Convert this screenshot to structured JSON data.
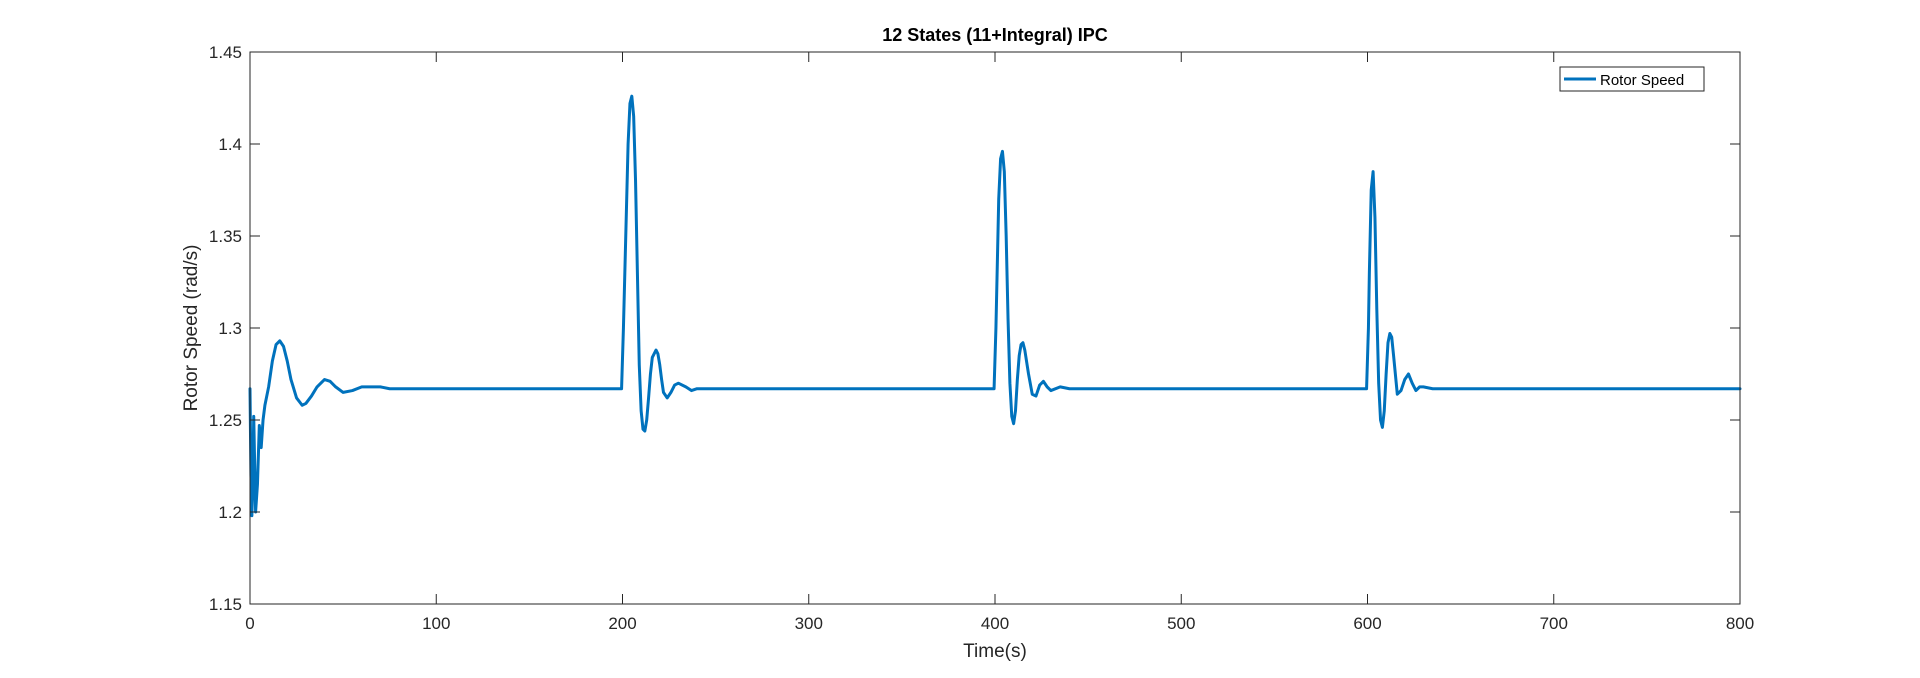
{
  "chart_data": {
    "type": "line",
    "title": "12 States (11+Integral) IPC",
    "xlabel": "Time(s)",
    "ylabel": "Rotor Speed (rad/s)",
    "xlim": [
      0,
      800
    ],
    "ylim": [
      1.15,
      1.45
    ],
    "xticks": [
      0,
      100,
      200,
      300,
      400,
      500,
      600,
      700,
      800
    ],
    "yticks": [
      1.15,
      1.2,
      1.25,
      1.3,
      1.35,
      1.4,
      1.45
    ],
    "xtick_labels": [
      "0",
      "100",
      "200",
      "300",
      "400",
      "500",
      "600",
      "700",
      "800"
    ],
    "ytick_labels": [
      "1.15",
      "1.2",
      "1.25",
      "1.3",
      "1.35",
      "1.4",
      "1.45"
    ],
    "grid": false,
    "legend_position": "top-right",
    "series": [
      {
        "name": "Rotor Speed",
        "color": "#0072BD",
        "x": [
          0,
          0.5,
          1,
          1.5,
          2,
          3,
          4,
          5,
          6,
          7,
          8,
          10,
          12,
          14,
          16,
          18,
          20,
          22,
          25,
          28,
          30,
          33,
          36,
          40,
          43,
          46,
          50,
          55,
          60,
          65,
          70,
          75,
          80,
          90,
          100,
          150,
          199.5,
          200.5,
          202,
          203,
          204,
          205,
          206,
          207,
          208,
          209,
          210,
          211,
          212,
          213,
          214,
          215,
          216,
          218,
          219,
          220,
          221,
          222,
          224,
          226,
          228,
          230,
          234,
          237,
          240,
          245,
          250,
          300,
          350,
          399.5,
          400.5,
          402,
          403,
          404,
          405,
          406,
          407,
          408,
          409,
          410,
          411,
          412,
          413,
          414,
          415,
          416,
          418,
          420,
          422,
          424,
          426,
          428,
          430,
          435,
          440,
          450,
          500,
          550,
          599.5,
          600.5,
          601,
          602,
          603,
          604,
          605,
          606,
          607,
          608,
          609,
          610,
          611,
          612,
          613,
          614,
          616,
          618,
          620,
          622,
          624,
          626,
          628,
          630,
          635,
          640,
          700,
          800
        ],
        "values": [
          1.267,
          1.22,
          1.198,
          1.215,
          1.252,
          1.2,
          1.215,
          1.247,
          1.235,
          1.25,
          1.258,
          1.268,
          1.282,
          1.291,
          1.293,
          1.29,
          1.282,
          1.272,
          1.262,
          1.258,
          1.259,
          1.263,
          1.268,
          1.272,
          1.271,
          1.268,
          1.265,
          1.266,
          1.268,
          1.268,
          1.268,
          1.267,
          1.267,
          1.267,
          1.267,
          1.267,
          1.267,
          1.3,
          1.36,
          1.4,
          1.422,
          1.426,
          1.415,
          1.38,
          1.33,
          1.28,
          1.255,
          1.245,
          1.244,
          1.25,
          1.262,
          1.275,
          1.284,
          1.288,
          1.286,
          1.28,
          1.272,
          1.265,
          1.262,
          1.265,
          1.269,
          1.27,
          1.268,
          1.266,
          1.267,
          1.267,
          1.267,
          1.267,
          1.267,
          1.267,
          1.3,
          1.37,
          1.392,
          1.396,
          1.385,
          1.35,
          1.305,
          1.27,
          1.252,
          1.248,
          1.255,
          1.272,
          1.285,
          1.291,
          1.292,
          1.288,
          1.275,
          1.264,
          1.263,
          1.269,
          1.271,
          1.268,
          1.266,
          1.268,
          1.267,
          1.267,
          1.267,
          1.267,
          1.267,
          1.3,
          1.33,
          1.375,
          1.385,
          1.36,
          1.31,
          1.27,
          1.25,
          1.246,
          1.255,
          1.275,
          1.292,
          1.297,
          1.295,
          1.285,
          1.264,
          1.266,
          1.272,
          1.275,
          1.27,
          1.266,
          1.268,
          1.268,
          1.267,
          1.267,
          1.267,
          1.267
        ]
      }
    ]
  }
}
